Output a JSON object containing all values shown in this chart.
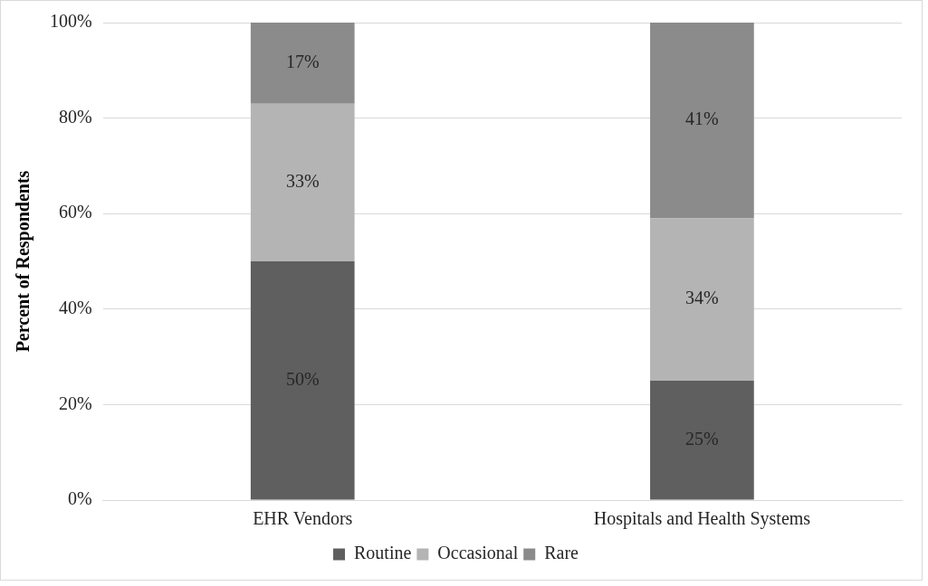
{
  "chart_data": {
    "type": "bar",
    "stacked": true,
    "ylabel": "Percent of Respondents",
    "categories": [
      "EHR Vendors",
      "Hospitals and Health Systems"
    ],
    "series": [
      {
        "name": "Routine",
        "color": "#5f5f5f",
        "values": [
          50,
          25
        ],
        "value_labels": [
          "50%",
          "25%"
        ]
      },
      {
        "name": "Occasional",
        "color": "#b4b4b4",
        "values": [
          33,
          34
        ],
        "value_labels": [
          "33%",
          "34%"
        ]
      },
      {
        "name": "Rare",
        "color": "#8b8b8b",
        "values": [
          17,
          41
        ],
        "value_labels": [
          "17%",
          "41%"
        ]
      }
    ],
    "ylim": [
      0,
      100
    ],
    "yticks": [
      {
        "value": 0,
        "label": "0%"
      },
      {
        "value": 20,
        "label": "20%"
      },
      {
        "value": 40,
        "label": "40%"
      },
      {
        "value": 60,
        "label": "60%"
      },
      {
        "value": 80,
        "label": "80%"
      },
      {
        "value": 100,
        "label": "100%"
      }
    ],
    "grid": "y",
    "legend": "bottom"
  }
}
